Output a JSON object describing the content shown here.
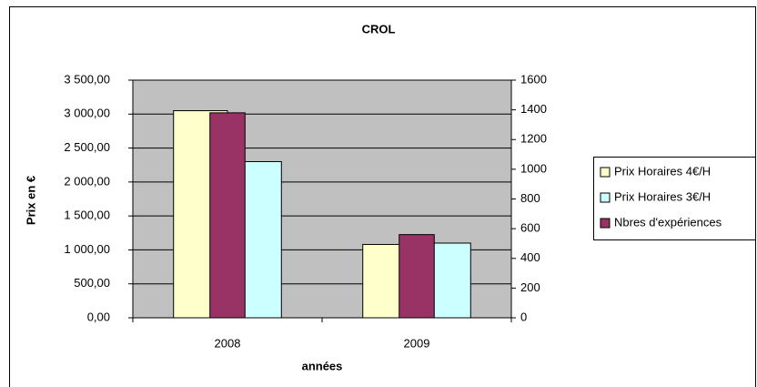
{
  "chart_data": {
    "type": "bar",
    "title": "CROL",
    "x_label": "années",
    "y_label": "Prix en €",
    "categories": [
      "2008",
      "2009"
    ],
    "series": [
      {
        "name": "Prix Horaires 4€/H",
        "color": "#ffffcc",
        "values": [
          3050,
          1080
        ]
      },
      {
        "name": "Prix Horaires 3€/H",
        "color": "#ccffff",
        "values": [
          2300,
          1100
        ]
      },
      {
        "name": "Nbres d'expériences",
        "color": "#993366",
        "values": [
          1380,
          560
        ],
        "axis": "y2"
      }
    ],
    "ylim": [
      0,
      3500
    ],
    "yticks": [
      {
        "value": 0,
        "label": "0,00"
      },
      {
        "value": 500,
        "label": "500,00"
      },
      {
        "value": 1000,
        "label": "1 000,00"
      },
      {
        "value": 1500,
        "label": "1 500,00"
      },
      {
        "value": 2000,
        "label": "2 000,00"
      },
      {
        "value": 2500,
        "label": "2 500,00"
      },
      {
        "value": 3000,
        "label": "3 000,00"
      },
      {
        "value": 3500,
        "label": "3 500,00"
      }
    ],
    "y2lim": [
      0,
      1600
    ],
    "y2ticks": [
      0,
      200,
      400,
      600,
      800,
      1000,
      1200,
      1400,
      1600
    ],
    "grid": true,
    "legend": "right"
  }
}
